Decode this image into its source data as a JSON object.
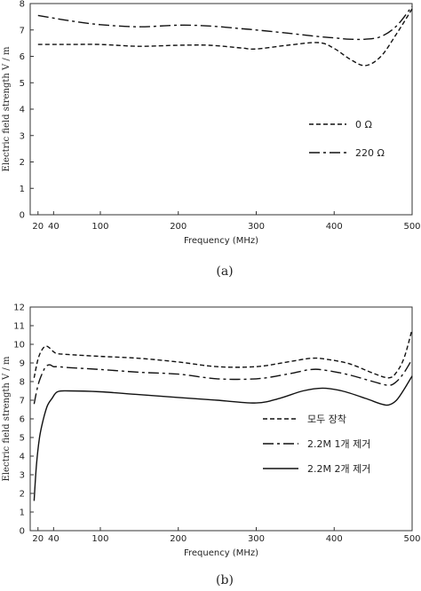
{
  "chart_data": [
    {
      "type": "line",
      "caption": "(a)",
      "xlabel": "Frequency (MHz)",
      "ylabel": "Electric field strength V / m",
      "xlim": [
        10,
        500
      ],
      "ylim": [
        0,
        8
      ],
      "xticks": [
        20,
        40,
        100,
        200,
        300,
        400,
        500
      ],
      "yticks": [
        0,
        1,
        2,
        3,
        4,
        5,
        6,
        7,
        8
      ],
      "grid": false,
      "legend_position": "center-right",
      "series": [
        {
          "name": "0 Ω",
          "style": "dashed",
          "color": "#111111",
          "x": [
            20,
            40,
            60,
            100,
            150,
            200,
            240,
            280,
            300,
            340,
            380,
            400,
            420,
            440,
            460,
            480,
            500
          ],
          "y": [
            6.45,
            6.45,
            6.45,
            6.45,
            6.38,
            6.42,
            6.42,
            6.32,
            6.28,
            6.42,
            6.52,
            6.3,
            5.9,
            5.65,
            6.0,
            6.85,
            7.8
          ]
        },
        {
          "name": "220 Ω",
          "style": "dashdot",
          "color": "#111111",
          "x": [
            20,
            40,
            60,
            100,
            150,
            200,
            240,
            280,
            300,
            340,
            380,
            400,
            420,
            440,
            460,
            480,
            500
          ],
          "y": [
            7.55,
            7.45,
            7.35,
            7.2,
            7.12,
            7.18,
            7.15,
            7.05,
            7.0,
            6.88,
            6.75,
            6.7,
            6.65,
            6.65,
            6.75,
            7.15,
            7.9
          ]
        }
      ]
    },
    {
      "type": "line",
      "caption": "(b)",
      "xlabel": "Frequency (MHz)",
      "ylabel": "Electric field strength V / m",
      "xlim": [
        10,
        500
      ],
      "ylim": [
        0,
        12
      ],
      "xticks": [
        20,
        40,
        100,
        200,
        300,
        400,
        500
      ],
      "yticks": [
        0,
        1,
        2,
        3,
        4,
        5,
        6,
        7,
        8,
        9,
        10,
        11,
        12
      ],
      "grid": false,
      "legend_position": "lower-right",
      "series": [
        {
          "name": "모두 장착",
          "style": "dashed",
          "color": "#111111",
          "x": [
            15,
            20,
            25,
            30,
            35,
            40,
            45,
            60,
            100,
            150,
            200,
            250,
            300,
            340,
            370,
            390,
            420,
            450,
            470,
            480,
            490,
            500
          ],
          "y": [
            8.2,
            9.2,
            9.7,
            9.9,
            9.8,
            9.6,
            9.5,
            9.45,
            9.35,
            9.25,
            9.05,
            8.8,
            8.8,
            9.05,
            9.25,
            9.2,
            8.95,
            8.45,
            8.2,
            8.5,
            9.3,
            10.8
          ]
        },
        {
          "name": "2.2M 1개 제거",
          "style": "dashdot",
          "color": "#111111",
          "x": [
            15,
            20,
            25,
            30,
            35,
            40,
            45,
            60,
            100,
            150,
            200,
            250,
            300,
            340,
            370,
            390,
            420,
            450,
            470,
            480,
            490,
            500
          ],
          "y": [
            6.8,
            7.8,
            8.4,
            8.8,
            8.9,
            8.8,
            8.8,
            8.75,
            8.65,
            8.5,
            8.4,
            8.15,
            8.15,
            8.4,
            8.65,
            8.6,
            8.35,
            8.0,
            7.8,
            8.0,
            8.5,
            9.2
          ]
        },
        {
          "name": "2.2M 2개 제거",
          "style": "solid",
          "color": "#111111",
          "x": [
            15,
            18,
            22,
            27,
            32,
            38,
            45,
            60,
            100,
            150,
            200,
            250,
            300,
            330,
            360,
            385,
            410,
            440,
            460,
            470,
            480,
            490,
            500
          ],
          "y": [
            1.6,
            3.5,
            5.0,
            6.0,
            6.7,
            7.1,
            7.45,
            7.5,
            7.45,
            7.3,
            7.15,
            7.0,
            6.85,
            7.1,
            7.5,
            7.65,
            7.5,
            7.1,
            6.8,
            6.75,
            7.0,
            7.6,
            8.3
          ]
        }
      ]
    }
  ]
}
